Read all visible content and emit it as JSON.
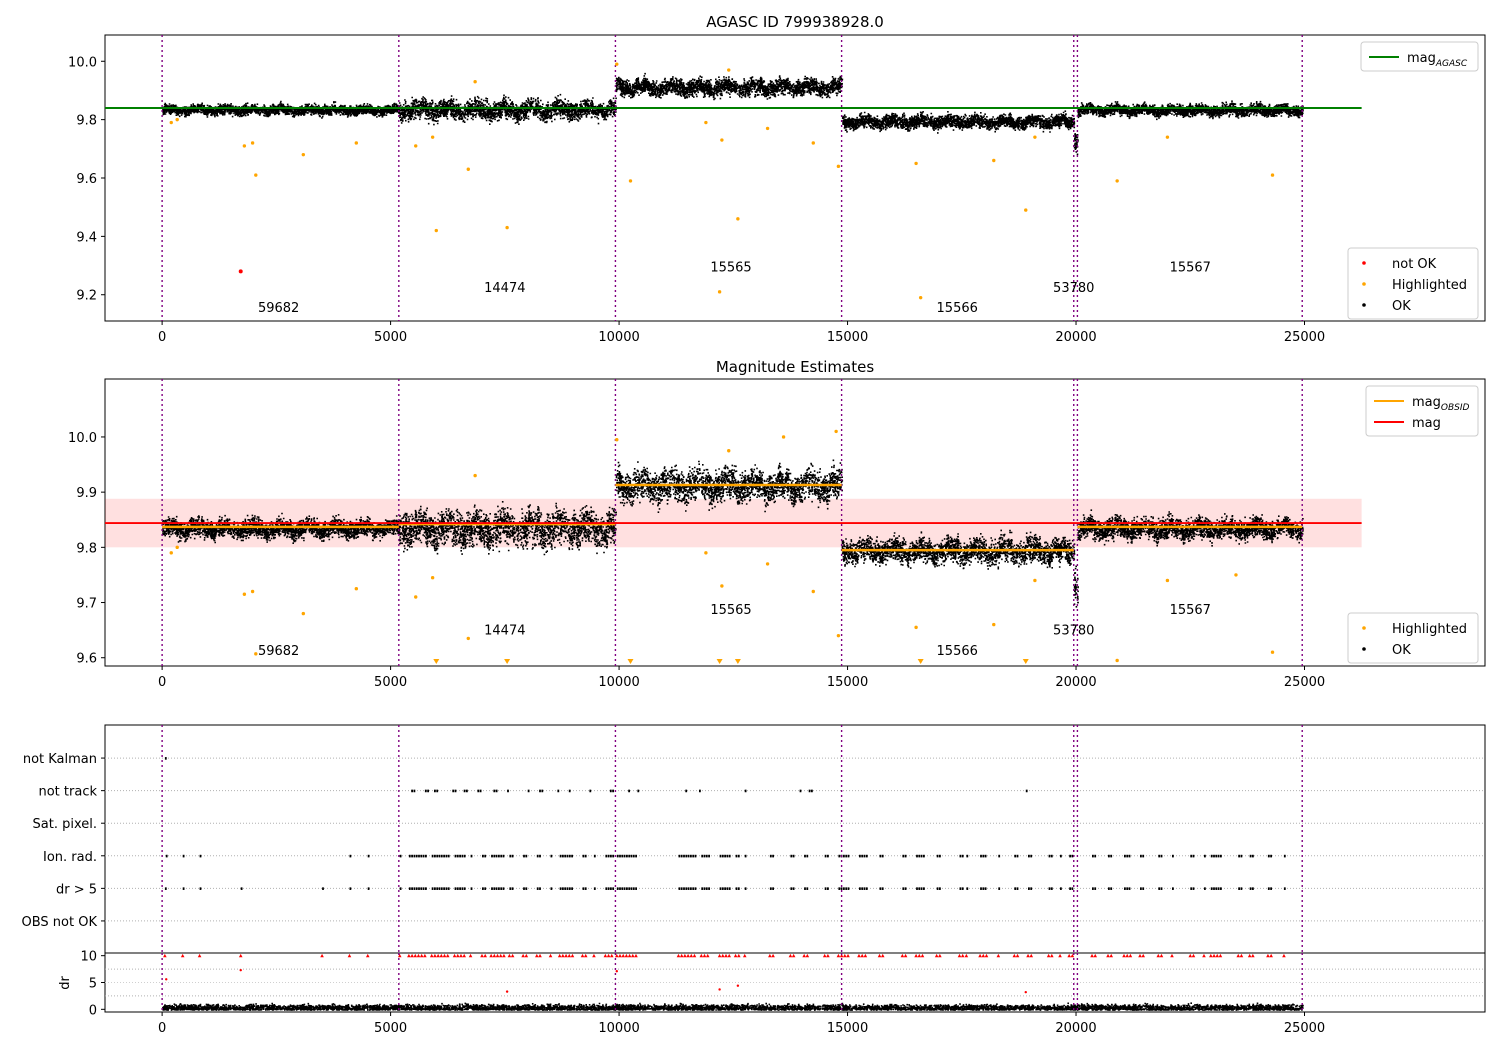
{
  "chart_data": [
    {
      "type": "scatter",
      "title": "AGASC ID 799938928.0",
      "xlim": [
        -1250,
        28950
      ],
      "ylim": [
        9.11,
        10.09
      ],
      "xticks": [
        0,
        5000,
        10000,
        15000,
        20000,
        25000
      ],
      "yticks": [
        9.2,
        9.4,
        9.6,
        9.8,
        10.0
      ],
      "legend_top": {
        "placement": "top-right",
        "entries": [
          {
            "label": "mag",
            "sub": "AGASC",
            "color": "#008000",
            "kind": "line"
          }
        ]
      },
      "legend_bottom": {
        "placement": "bottom-right",
        "entries": [
          {
            "label": "not OK",
            "color": "#ff0000",
            "kind": "dot"
          },
          {
            "label": "Highlighted",
            "color": "#ffa500",
            "kind": "dot"
          },
          {
            "label": "OK",
            "color": "#000000",
            "kind": "dot"
          }
        ]
      },
      "hlines": [
        {
          "y": 9.84,
          "x0": -1250,
          "x1": 26250,
          "color": "#008000"
        }
      ],
      "not_ok_points": [
        [
          1720,
          9.28
        ]
      ],
      "highlighted_points": [
        [
          200,
          9.79
        ],
        [
          330,
          9.8
        ],
        [
          1800,
          9.71
        ],
        [
          1980,
          9.72
        ],
        [
          2050,
          9.61
        ],
        [
          3090,
          9.68
        ],
        [
          4250,
          9.72
        ],
        [
          5550,
          9.71
        ],
        [
          5920,
          9.74
        ],
        [
          6000,
          9.42
        ],
        [
          6700,
          9.63
        ],
        [
          7550,
          9.43
        ],
        [
          10250,
          9.59
        ],
        [
          11900,
          9.79
        ],
        [
          12250,
          9.73
        ],
        [
          12200,
          9.21
        ],
        [
          12600,
          9.46
        ],
        [
          13250,
          9.77
        ],
        [
          14250,
          9.72
        ],
        [
          14800,
          9.64
        ],
        [
          16600,
          9.19
        ],
        [
          16500,
          9.65
        ],
        [
          18200,
          9.66
        ],
        [
          18900,
          9.49
        ],
        [
          19100,
          9.74
        ],
        [
          20900,
          9.59
        ],
        [
          22000,
          9.74
        ],
        [
          24300,
          9.61
        ],
        [
          6850,
          9.93
        ],
        [
          9950,
          9.99
        ],
        [
          12400,
          9.97
        ]
      ],
      "segments": [
        {
          "obsid": "59682",
          "x": [
            0,
            5180
          ],
          "level": 9.835,
          "spread": 0.014
        },
        {
          "obsid": "14474",
          "x": [
            5180,
            9920
          ],
          "level": 9.836,
          "spread": 0.028
        },
        {
          "obsid": "15565",
          "x": [
            9920,
            14870
          ],
          "level": 9.913,
          "spread": 0.024
        },
        {
          "obsid": "15566",
          "x": [
            14870,
            19950
          ],
          "level": 9.795,
          "spread": 0.019
        },
        {
          "obsid": "53780",
          "x": [
            19950,
            20030
          ],
          "level": 9.74,
          "spread": 0.03
        },
        {
          "obsid": "15567",
          "x": [
            20030,
            24950
          ],
          "level": 9.835,
          "spread": 0.016
        }
      ],
      "obsid_labels": [
        {
          "text": "59682",
          "x": 2550,
          "y": 9.14
        },
        {
          "text": "14474",
          "x": 7500,
          "y": 9.21
        },
        {
          "text": "15565",
          "x": 12450,
          "y": 9.28
        },
        {
          "text": "15566",
          "x": 17400,
          "y": 9.14
        },
        {
          "text": "53780",
          "x": 19950,
          "y": 9.21
        },
        {
          "text": "15567",
          "x": 22500,
          "y": 9.28
        }
      ],
      "vlines": [
        0,
        5180,
        9920,
        14870,
        19950,
        20030,
        24950
      ]
    },
    {
      "type": "scatter",
      "title": "Magnitude Estimates",
      "xlim": [
        -1250,
        28950
      ],
      "ylim": [
        9.585,
        10.105
      ],
      "xticks": [
        0,
        5000,
        10000,
        15000,
        20000,
        25000
      ],
      "yticks": [
        9.6,
        9.7,
        9.8,
        9.9,
        10.0
      ],
      "legend_top": {
        "placement": "top-right",
        "entries": [
          {
            "label": "mag",
            "sub": "OBSID",
            "color": "#ffa500",
            "kind": "line"
          },
          {
            "label": "mag",
            "color": "#ff0000",
            "kind": "line"
          }
        ]
      },
      "legend_bottom": {
        "placement": "bottom-right",
        "entries": [
          {
            "label": "Highlighted",
            "color": "#ffa500",
            "kind": "dot"
          },
          {
            "label": "OK",
            "color": "#000000",
            "kind": "dot"
          }
        ]
      },
      "mag": {
        "value": 9.844,
        "band": [
          9.8,
          9.888
        ],
        "x0": -1250,
        "x1": 26250
      },
      "obsid_mags": [
        {
          "x": [
            0,
            5180
          ],
          "y": 9.837
        },
        {
          "x": [
            5180,
            9920
          ],
          "y": 9.842
        },
        {
          "x": [
            9920,
            14870
          ],
          "y": 9.913
        },
        {
          "x": [
            14870,
            19950
          ],
          "y": 9.795
        },
        {
          "x": [
            20030,
            24950
          ],
          "y": 9.837
        }
      ],
      "segments": [
        {
          "x": [
            0,
            5180
          ],
          "level": 9.835,
          "spread": 0.014
        },
        {
          "x": [
            5180,
            9920
          ],
          "level": 9.836,
          "spread": 0.028
        },
        {
          "x": [
            9920,
            14870
          ],
          "level": 9.913,
          "spread": 0.024
        },
        {
          "x": [
            14870,
            19950
          ],
          "level": 9.795,
          "spread": 0.019
        },
        {
          "x": [
            19950,
            20030
          ],
          "level": 9.74,
          "spread": 0.03
        },
        {
          "x": [
            20030,
            24950
          ],
          "level": 9.835,
          "spread": 0.016
        }
      ],
      "highlighted_points": [
        [
          200,
          9.79
        ],
        [
          330,
          9.8
        ],
        [
          1800,
          9.715
        ],
        [
          1980,
          9.72
        ],
        [
          3090,
          9.68
        ],
        [
          4250,
          9.725
        ],
        [
          5550,
          9.71
        ],
        [
          5920,
          9.745
        ],
        [
          6700,
          9.635
        ],
        [
          11900,
          9.79
        ],
        [
          12250,
          9.73
        ],
        [
          13250,
          9.77
        ],
        [
          14250,
          9.72
        ],
        [
          14800,
          9.64
        ],
        [
          16500,
          9.655
        ],
        [
          18200,
          9.66
        ],
        [
          19100,
          9.74
        ],
        [
          22000,
          9.74
        ],
        [
          23500,
          9.75
        ],
        [
          24300,
          9.61
        ],
        [
          20900,
          9.595
        ],
        [
          6850,
          9.93
        ],
        [
          9950,
          9.995
        ],
        [
          12400,
          9.975
        ],
        [
          14750,
          10.01
        ],
        [
          13600,
          10.0
        ],
        [
          2050,
          9.607
        ]
      ],
      "clipped_points": [
        6000,
        7550,
        10250,
        12200,
        12600,
        16600,
        18900
      ],
      "obsid_labels": [
        {
          "text": "59682",
          "x": 2550,
          "y": 9.605
        },
        {
          "text": "14474",
          "x": 7500,
          "y": 9.642
        },
        {
          "text": "15565",
          "x": 12450,
          "y": 9.679
        },
        {
          "text": "15566",
          "x": 17400,
          "y": 9.605
        },
        {
          "text": "53780",
          "x": 19950,
          "y": 9.642
        },
        {
          "text": "15567",
          "x": 22500,
          "y": 9.679
        }
      ],
      "vlines": [
        0,
        5180,
        9920,
        14870,
        19950,
        20030,
        24950
      ]
    },
    {
      "type": "scatter",
      "flag_rows": [
        "not Kalman",
        "not track",
        "Sat. pixel.",
        "Ion. rad.",
        "dr > 5",
        "OBS not OK"
      ],
      "flags": {
        "not Kalman": [
          [
            60,
            100
          ]
        ],
        "not track": [
          [
            5450,
            5550
          ],
          [
            5750,
            5850
          ],
          [
            5950,
            6050
          ],
          [
            6350,
            6450
          ],
          [
            6600,
            6700
          ],
          [
            6900,
            7000
          ],
          [
            7250,
            7350
          ],
          [
            7550,
            7600
          ],
          [
            8000,
            8050
          ],
          [
            8250,
            8350
          ],
          [
            8650,
            8700
          ],
          [
            8900,
            8950
          ],
          [
            9350,
            9400
          ],
          [
            9800,
            9900
          ],
          [
            10200,
            10250
          ],
          [
            10400,
            10450
          ],
          [
            11450,
            11500
          ],
          [
            11750,
            11800
          ],
          [
            12750,
            12800
          ],
          [
            13950,
            14000
          ],
          [
            14150,
            14250
          ],
          [
            18900,
            18950
          ]
        ],
        "Ion. rad.": [
          [
            80,
            100
          ],
          [
            450,
            480
          ],
          [
            820,
            840
          ],
          [
            4100,
            4130
          ],
          [
            4500,
            4530
          ],
          [
            5200,
            5250
          ],
          [
            5400,
            5800
          ],
          [
            5900,
            6300
          ],
          [
            6400,
            6650
          ],
          [
            6750,
            6800
          ],
          [
            7000,
            7100
          ],
          [
            7200,
            7500
          ],
          [
            7600,
            7700
          ],
          [
            7900,
            8000
          ],
          [
            8200,
            8300
          ],
          [
            8500,
            8550
          ],
          [
            8700,
            9000
          ],
          [
            9200,
            9300
          ],
          [
            9450,
            9500
          ],
          [
            9700,
            9900
          ],
          [
            9950,
            10400
          ],
          [
            11300,
            11700
          ],
          [
            11800,
            12000
          ],
          [
            12200,
            12450
          ],
          [
            12550,
            12650
          ],
          [
            12750,
            12800
          ],
          [
            13300,
            13400
          ],
          [
            13750,
            13850
          ],
          [
            14050,
            14150
          ],
          [
            14500,
            14600
          ],
          [
            14800,
            15050
          ],
          [
            15250,
            15450
          ],
          [
            15700,
            15800
          ],
          [
            16200,
            16300
          ],
          [
            16500,
            16700
          ],
          [
            16950,
            17050
          ],
          [
            17450,
            17550
          ],
          [
            17600,
            17650
          ],
          [
            17900,
            18050
          ],
          [
            18300,
            18350
          ],
          [
            18650,
            18750
          ],
          [
            18950,
            19050
          ],
          [
            19400,
            19500
          ],
          [
            19650,
            19700
          ],
          [
            19850,
            19950
          ],
          [
            20350,
            20450
          ],
          [
            20700,
            20800
          ],
          [
            21050,
            21200
          ],
          [
            21400,
            21500
          ],
          [
            21800,
            21900
          ],
          [
            22100,
            22150
          ],
          [
            22500,
            22600
          ],
          [
            22800,
            22850
          ],
          [
            22950,
            23200
          ],
          [
            23550,
            23650
          ],
          [
            23800,
            23900
          ],
          [
            24200,
            24300
          ],
          [
            24550,
            24600
          ]
        ],
        "dr > 5": [
          [
            60,
            100
          ],
          [
            450,
            480
          ],
          [
            820,
            840
          ],
          [
            1720,
            1740
          ],
          [
            3500,
            3530
          ],
          [
            4100,
            4130
          ],
          [
            4500,
            4530
          ],
          [
            5200,
            5250
          ],
          [
            5400,
            5800
          ],
          [
            5900,
            6300
          ],
          [
            6400,
            6650
          ],
          [
            6750,
            6800
          ],
          [
            7000,
            7100
          ],
          [
            7200,
            7500
          ],
          [
            7600,
            7700
          ],
          [
            7900,
            8000
          ],
          [
            8200,
            8300
          ],
          [
            8500,
            8550
          ],
          [
            8700,
            9000
          ],
          [
            9200,
            9300
          ],
          [
            9450,
            9500
          ],
          [
            9700,
            9900
          ],
          [
            9950,
            10400
          ],
          [
            11300,
            11700
          ],
          [
            11800,
            12000
          ],
          [
            12200,
            12450
          ],
          [
            12550,
            12650
          ],
          [
            12750,
            12800
          ],
          [
            13300,
            13400
          ],
          [
            13750,
            13850
          ],
          [
            14050,
            14150
          ],
          [
            14500,
            14600
          ],
          [
            14800,
            15050
          ],
          [
            15250,
            15450
          ],
          [
            15700,
            15800
          ],
          [
            16200,
            16300
          ],
          [
            16500,
            16700
          ],
          [
            16950,
            17050
          ],
          [
            17450,
            17550
          ],
          [
            17600,
            17650
          ],
          [
            17900,
            18050
          ],
          [
            18300,
            18350
          ],
          [
            18650,
            18750
          ],
          [
            18950,
            19050
          ],
          [
            19400,
            19500
          ],
          [
            19650,
            19700
          ],
          [
            19850,
            19950
          ],
          [
            20350,
            20450
          ],
          [
            20700,
            20800
          ],
          [
            21050,
            21200
          ],
          [
            21400,
            21500
          ],
          [
            21800,
            21900
          ],
          [
            22100,
            22150
          ],
          [
            22500,
            22600
          ],
          [
            22800,
            22850
          ],
          [
            22950,
            23200
          ],
          [
            23550,
            23650
          ],
          [
            23800,
            23900
          ],
          [
            24200,
            24300
          ],
          [
            24550,
            24600
          ]
        ],
        "Sat. pixel.": [],
        "OBS not OK": []
      },
      "vlines": [
        0,
        5180,
        9920,
        14870,
        19950,
        20030,
        24950
      ]
    },
    {
      "type": "scatter",
      "ylabel": "dr",
      "xlim": [
        -1250,
        28950
      ],
      "ylim": [
        -0.5,
        10.5
      ],
      "xticks": [
        0,
        5000,
        10000,
        15000,
        20000,
        25000
      ],
      "yticks": [
        0,
        5,
        10
      ],
      "large_dr_points": [
        [
          90,
          5.6
        ],
        [
          1720,
          7.3
        ],
        [
          7550,
          3.3
        ],
        [
          9950,
          7.1
        ],
        [
          12200,
          3.7
        ],
        [
          12600,
          4.4
        ],
        [
          18900,
          3.2
        ]
      ],
      "dr_baseline": {
        "level": 0.4,
        "spread": 0.3
      },
      "vlines": [
        0,
        5180,
        9920,
        14870,
        19950,
        20030,
        24950
      ]
    }
  ]
}
